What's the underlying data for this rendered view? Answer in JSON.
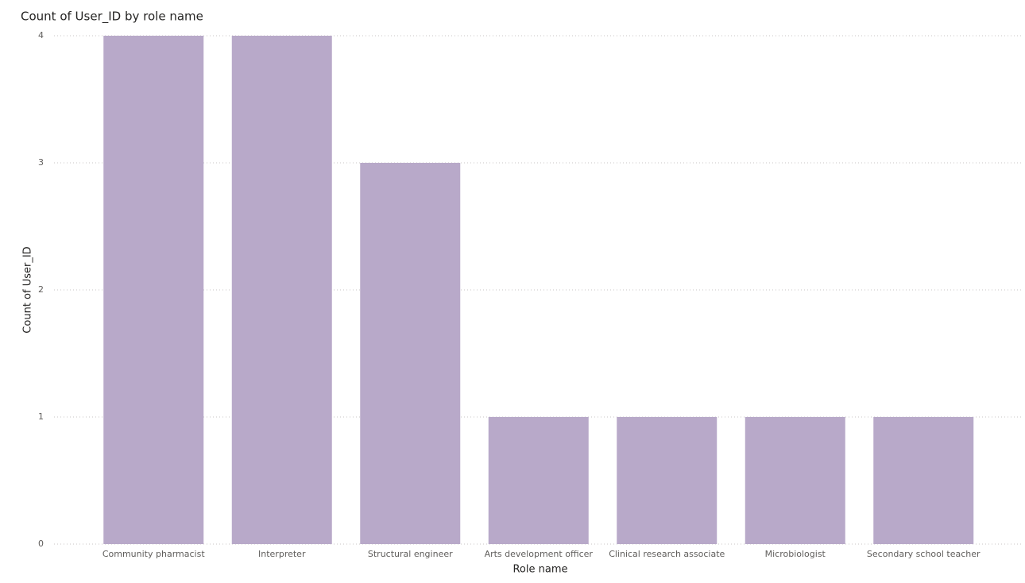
{
  "chart_data": {
    "type": "bar",
    "title": "Count of User_ID by role name",
    "x_label": "Role name",
    "y_label": "Count of User_ID",
    "categories": [
      "Community pharmacist",
      "Interpreter",
      "Structural engineer",
      "Arts development officer",
      "Clinical research associate",
      "Microbiologist",
      "Secondary school teacher"
    ],
    "values": [
      4,
      4,
      3,
      1,
      1,
      1,
      1
    ],
    "color": "#b8a9c9",
    "ylim": [
      0,
      4
    ],
    "yticks": [
      0,
      1,
      2,
      3,
      4
    ],
    "grid": true
  }
}
